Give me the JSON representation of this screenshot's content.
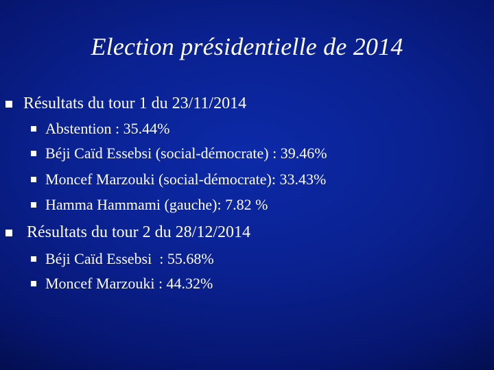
{
  "slide": {
    "title": "Election présidentielle de 2014",
    "sections": [
      {
        "heading": "Résultats du tour 1 du 23/11/2014",
        "items": [
          "Abstention : 35.44%",
          "Béji Caïd Essebsi (social-démocrate) : 39.46%",
          "Moncef Marzouki (social-démocrate): 33.43%",
          "Hamma Hammami (gauche): 7.82 %"
        ]
      },
      {
        "heading": "Résultats du tour 2 du 28/12/2014",
        "items": [
          "Béji Caïd Essebsi  : 55.68%",
          "Moncef Marzouki : 44.32%"
        ]
      }
    ]
  },
  "colors": {
    "background": "#0a2190",
    "text": "#ffffff"
  }
}
